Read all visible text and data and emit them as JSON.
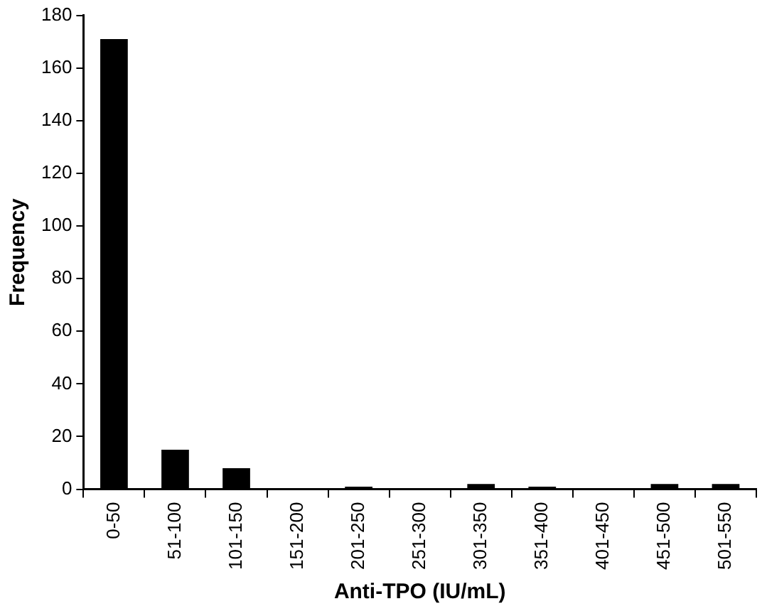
{
  "chart_data": {
    "type": "bar",
    "xlabel": "Anti-TPO (IU/mL)",
    "ylabel": "Frequency",
    "categories": [
      "0-50",
      "51-100",
      "101-150",
      "151-200",
      "201-250",
      "251-300",
      "301-350",
      "351-400",
      "401-450",
      "451-500",
      "501-550"
    ],
    "values": [
      171,
      15,
      8,
      0,
      1,
      0,
      2,
      1,
      0,
      2,
      2
    ],
    "color": "#000000",
    "ylim": [
      0,
      180
    ],
    "yticks": [
      0,
      20,
      40,
      60,
      80,
      100,
      120,
      140,
      160,
      180
    ],
    "grid": false,
    "legend": false
  }
}
